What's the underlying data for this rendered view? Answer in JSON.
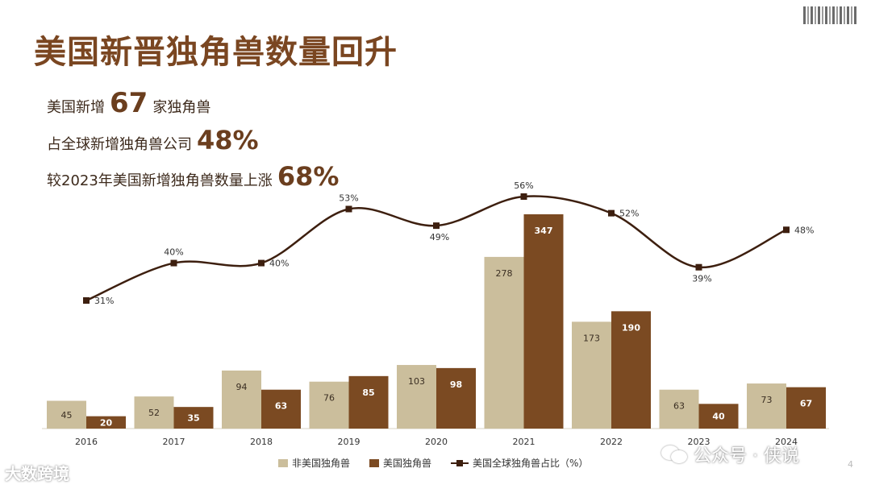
{
  "title": "美国新晋独角兽数量回升",
  "stats": [
    {
      "prefix": "美国新增",
      "value": "67",
      "suffix": "家独角兽"
    },
    {
      "prefix": "占全球新增独角兽公司",
      "value": "48%",
      "suffix": ""
    },
    {
      "prefix": "较2023年美国新增独角兽数量上涨",
      "value": "68%",
      "suffix": ""
    }
  ],
  "watermarks": {
    "left": "大数跨境",
    "right": "公众号 · 侠说"
  },
  "page_number": "4",
  "colors": {
    "title": "#7a4621",
    "non_us": "#cbbe9c",
    "us": "#7b4a22",
    "share_line": "#3d1f0f"
  },
  "chart_data": {
    "type": "bar",
    "categories": [
      "2016",
      "2017",
      "2018",
      "2019",
      "2020",
      "2021",
      "2022",
      "2023",
      "2024"
    ],
    "series": [
      {
        "name": "非美国独角兽",
        "type": "bar",
        "values": [
          45,
          52,
          94,
          76,
          103,
          278,
          173,
          63,
          73
        ]
      },
      {
        "name": "美国独角兽",
        "type": "bar",
        "values": [
          20,
          35,
          63,
          85,
          98,
          347,
          190,
          40,
          67
        ]
      },
      {
        "name": "美国全球独角兽占比（%）",
        "type": "line",
        "values": [
          31,
          40,
          40,
          53,
          49,
          56,
          52,
          39,
          48
        ],
        "unit": "%"
      }
    ],
    "legend_position": "bottom",
    "grid": false
  }
}
